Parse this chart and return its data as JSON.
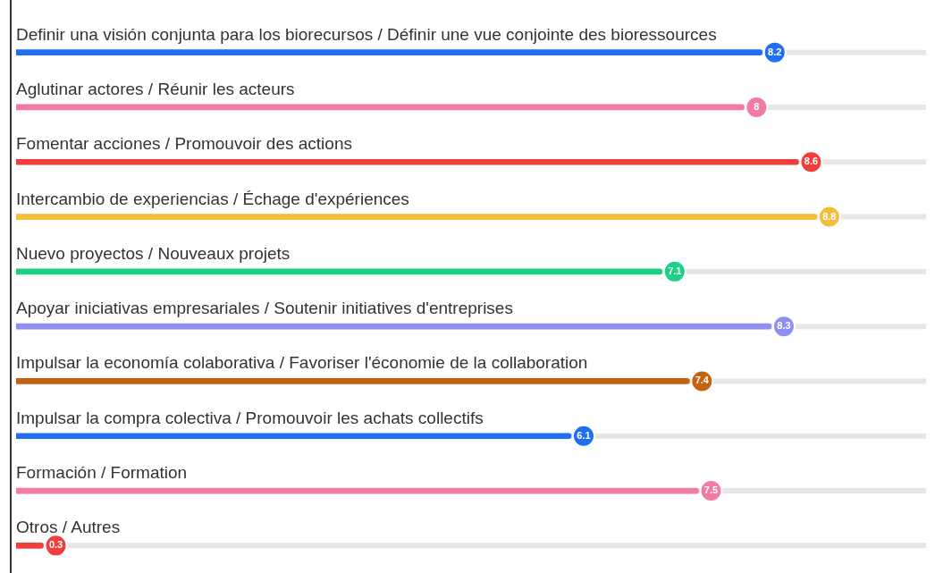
{
  "chart_data": {
    "type": "bar",
    "orientation": "horizontal",
    "categories": [
      "Definir una visión conjunta para los biorecursos / Définir une vue conjointe des bioressources",
      "Aglutinar actores / Réunir les acteurs",
      "Fomentar acciones / Promouvoir des actions",
      "Intercambio de experiencias / Échage d'expériences",
      "Nuevo proyectos / Nouveaux projets",
      "Apoyar iniciativas empresariales / Soutenir initiatives d'entreprises",
      "Impulsar la economía colaborativa / Favoriser l'économie de la collaboration",
      "Impulsar la compra colectiva / Promouvoir les achats collectifs",
      "Formación / Formation",
      "Otros / Autres"
    ],
    "values": [
      8.2,
      8,
      8.6,
      8.8,
      7.1,
      8.3,
      7.4,
      6.1,
      7.5,
      0.3
    ],
    "colors": [
      "#1f6ff0",
      "#f27aa3",
      "#f23d3d",
      "#f5bd3a",
      "#1ecf88",
      "#8f8ff0",
      "#c4620f",
      "#1f6ff0",
      "#f27aa3",
      "#f23d3d"
    ],
    "legend": false,
    "data_labels": true
  }
}
